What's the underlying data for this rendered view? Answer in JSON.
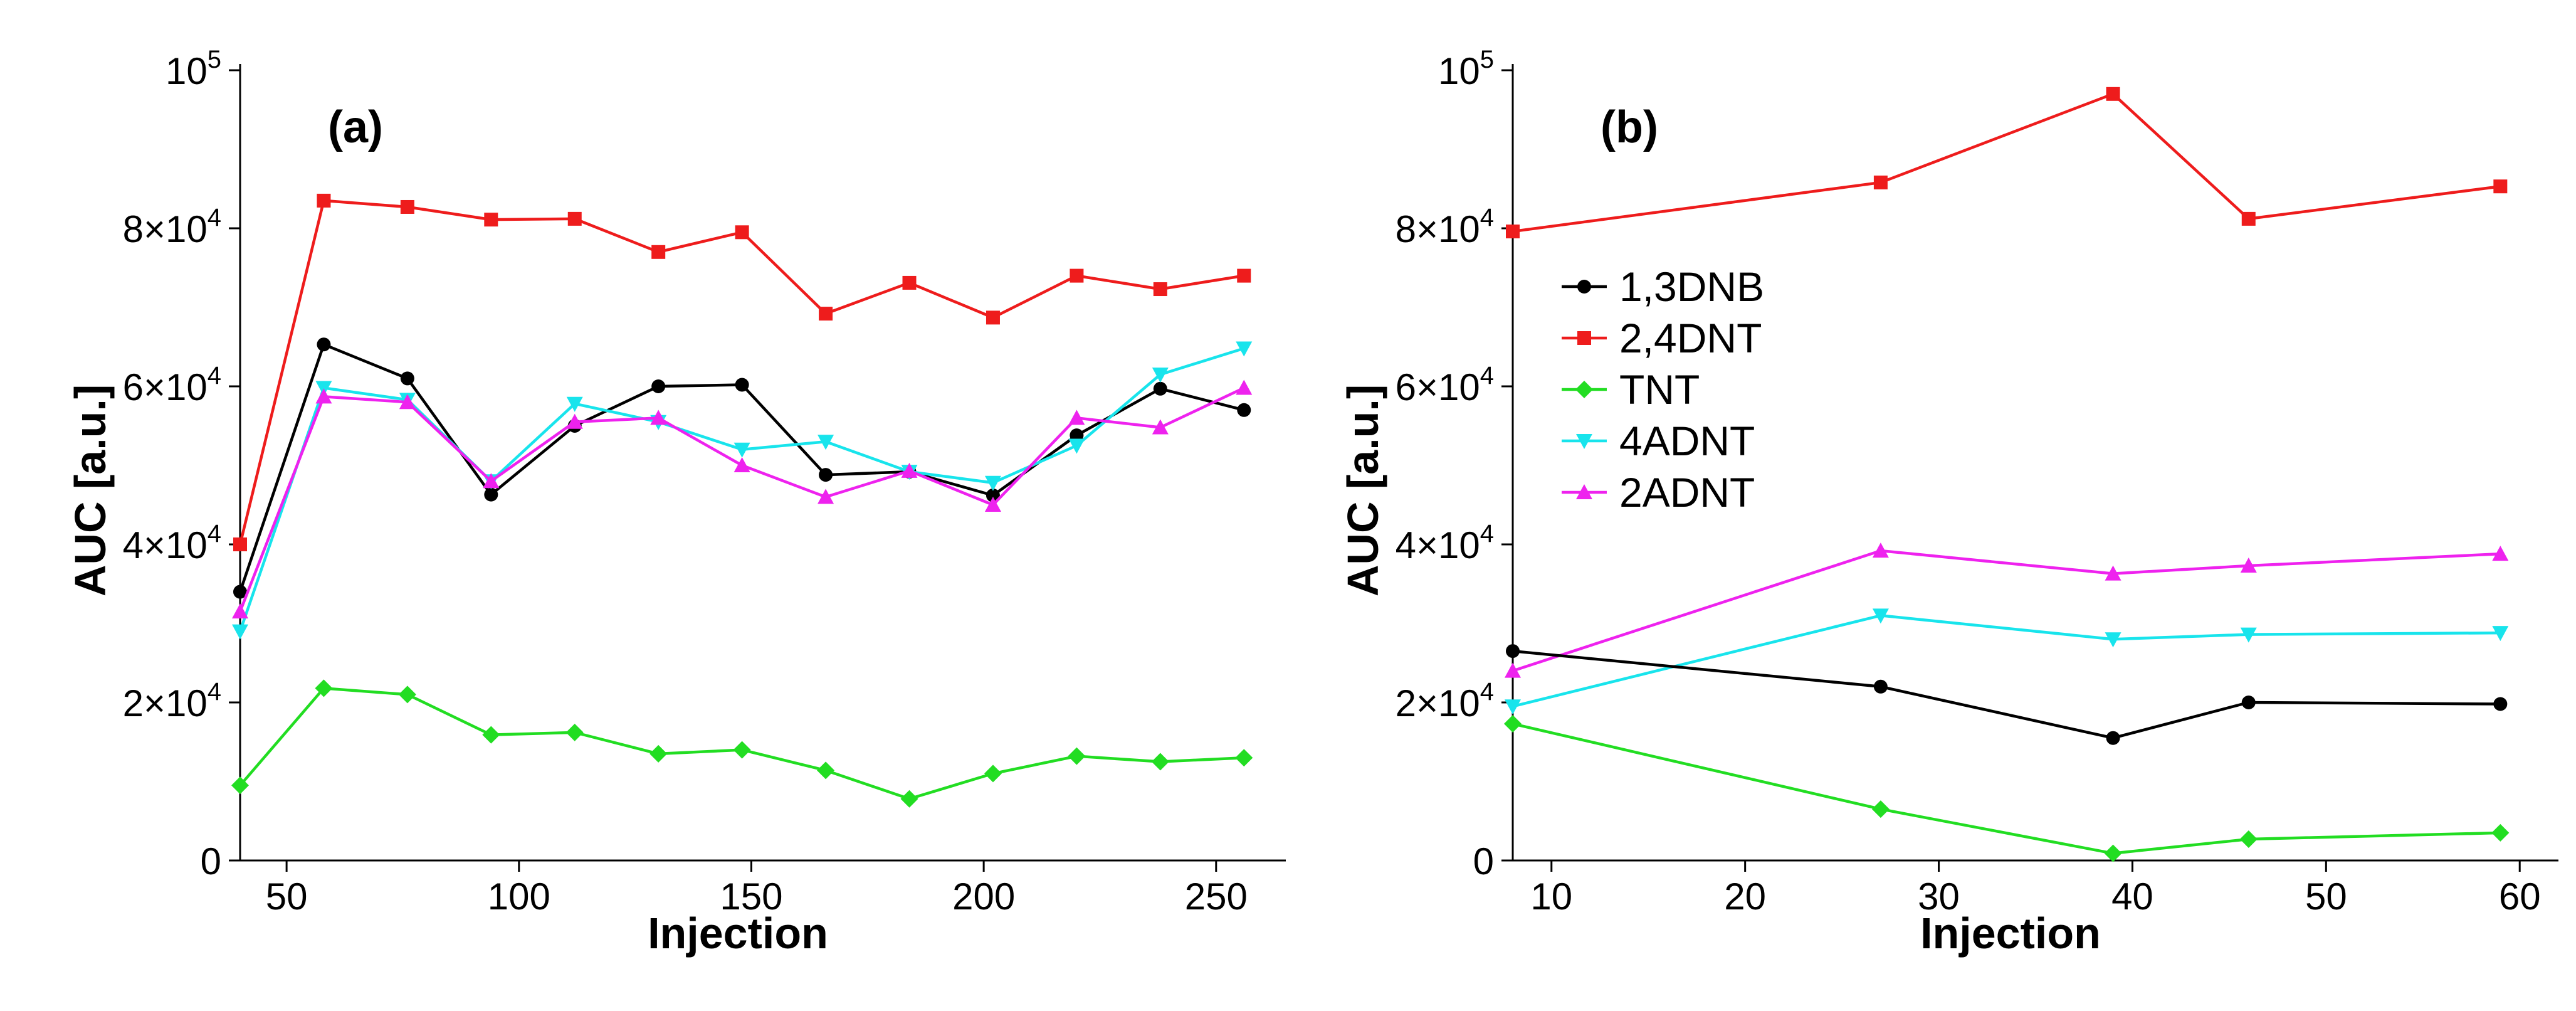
{
  "chart_data": [
    {
      "type": "line",
      "panel_label": "(a)",
      "xlabel": "Injection",
      "ylabel": "AUC [a.u.]",
      "xlim": [
        40,
        265
      ],
      "ylim": [
        0,
        100000
      ],
      "xticks": [
        50,
        100,
        150,
        200,
        250
      ],
      "yticks": [
        {
          "value": 0,
          "label": "0"
        },
        {
          "value": 20000,
          "label": "2×10",
          "exp": "4"
        },
        {
          "value": 40000,
          "label": "4×10",
          "exp": "4"
        },
        {
          "value": 60000,
          "label": "6×10",
          "exp": "4"
        },
        {
          "value": 80000,
          "label": "8×10",
          "exp": "4"
        },
        {
          "value": 100000,
          "label": "10",
          "exp": "5"
        }
      ],
      "x": [
        40,
        58,
        76,
        94,
        112,
        130,
        148,
        166,
        184,
        202,
        220,
        238,
        256
      ],
      "series": [
        {
          "name": "2,4DNT",
          "color": "#ee1c1c",
          "marker": "square",
          "values": [
            40000,
            83500,
            82700,
            81100,
            81200,
            77000,
            79500,
            69200,
            73100,
            68700,
            74000,
            72300,
            74000
          ]
        },
        {
          "name": "1,3DNB",
          "color": "#000000",
          "marker": "circle",
          "values": [
            34000,
            65300,
            61000,
            46300,
            55000,
            60000,
            60200,
            48800,
            49200,
            46200,
            53800,
            59700,
            57000
          ]
        },
        {
          "name": "4ADNT",
          "color": "#18e4ec",
          "marker": "triangle-down",
          "values": [
            29000,
            59800,
            58300,
            48000,
            57800,
            55500,
            52000,
            53000,
            49200,
            47800,
            52500,
            61500,
            64800
          ]
        },
        {
          "name": "2ADNT",
          "color": "#ee22ee",
          "marker": "triangle-up",
          "values": [
            31500,
            58700,
            58000,
            48000,
            55500,
            56000,
            50000,
            46000,
            49300,
            45000,
            56000,
            54800,
            59800
          ]
        },
        {
          "name": "TNT",
          "color": "#22dd22",
          "marker": "diamond",
          "values": [
            9500,
            21800,
            21000,
            15900,
            16200,
            13500,
            14000,
            11400,
            7800,
            11000,
            13200,
            12500,
            13000
          ]
        }
      ]
    },
    {
      "type": "line",
      "panel_label": "(b)",
      "xlabel": "Injection",
      "ylabel": "AUC [a.u.]",
      "xlim": [
        8,
        62
      ],
      "ylim": [
        0,
        100000
      ],
      "xticks": [
        10,
        20,
        30,
        40,
        50,
        60
      ],
      "yticks": [
        {
          "value": 0,
          "label": "0"
        },
        {
          "value": 20000,
          "label": "2×10",
          "exp": "4"
        },
        {
          "value": 40000,
          "label": "4×10",
          "exp": "4"
        },
        {
          "value": 60000,
          "label": "6×10",
          "exp": "4"
        },
        {
          "value": 80000,
          "label": "8×10",
          "exp": "4"
        },
        {
          "value": 100000,
          "label": "10",
          "exp": "5"
        }
      ],
      "x": [
        8,
        27,
        39,
        46,
        59
      ],
      "legend": {
        "position": "upper-left",
        "order": [
          "1,3DNB",
          "2,4DNT",
          "TNT",
          "4ADNT",
          "2ADNT"
        ]
      },
      "series": [
        {
          "name": "2,4DNT",
          "color": "#ee1c1c",
          "marker": "square",
          "values": [
            79600,
            85800,
            97000,
            81200,
            85300
          ]
        },
        {
          "name": "2ADNT",
          "color": "#ee22ee",
          "marker": "triangle-up",
          "values": [
            24000,
            39200,
            36300,
            37300,
            38800
          ]
        },
        {
          "name": "4ADNT",
          "color": "#18e4ec",
          "marker": "triangle-down",
          "values": [
            19500,
            31000,
            28000,
            28600,
            28800
          ]
        },
        {
          "name": "1,3DNB",
          "color": "#000000",
          "marker": "circle",
          "values": [
            26500,
            22000,
            15500,
            20000,
            19800
          ]
        },
        {
          "name": "TNT",
          "color": "#22dd22",
          "marker": "diamond",
          "values": [
            17300,
            6500,
            900,
            2700,
            3500
          ]
        }
      ]
    }
  ]
}
